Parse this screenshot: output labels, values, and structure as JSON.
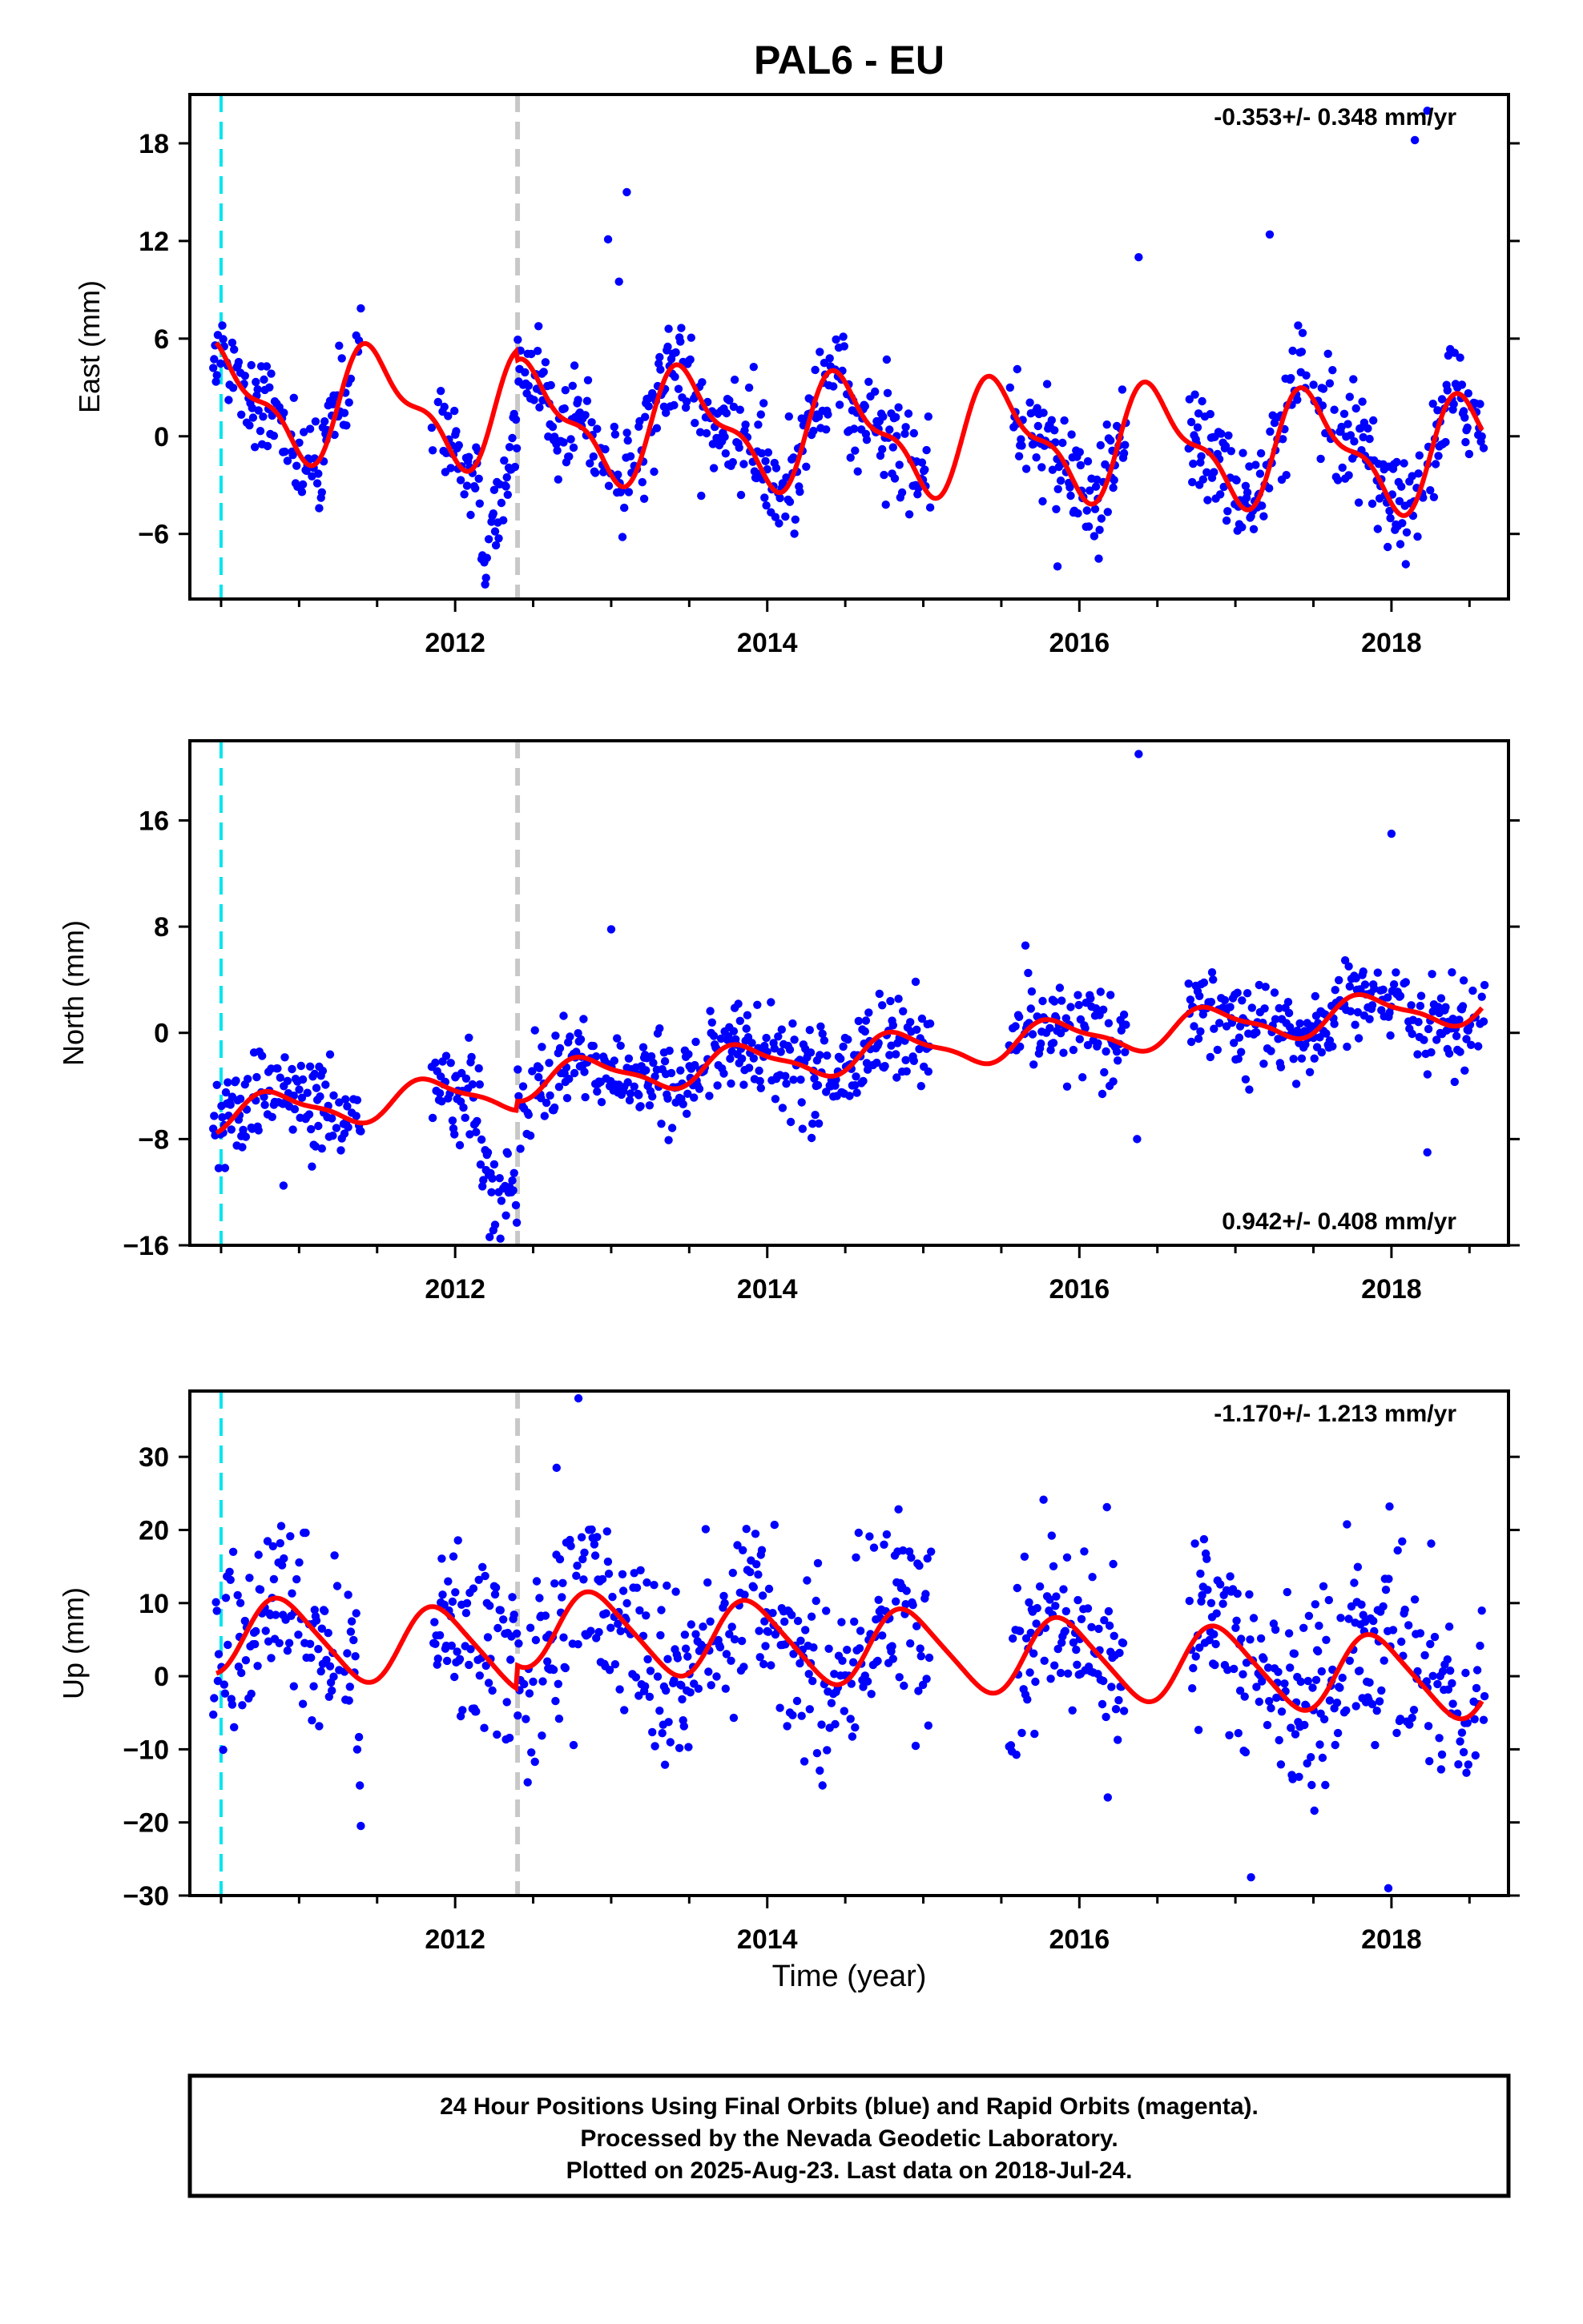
{
  "chart_data": {
    "type": "scatter",
    "title": "PAL6 - EU",
    "xlabel": "Time (year)",
    "xlim": [
      2010.3,
      2018.75
    ],
    "x_ticks": [
      "2012",
      "2014",
      "2016",
      "2018"
    ],
    "colors": {
      "final_orbits": "#0000ff",
      "rapid_orbits": "#ff00ff",
      "model": "#ff0000",
      "antenna_change": "#00e5ee",
      "equipment_change": "#c8c8c8"
    },
    "events": [
      {
        "type": "antenna_change",
        "year": 2010.5,
        "color": "#00e5ee"
      },
      {
        "type": "equipment_change",
        "year": 2012.4,
        "color": "#c8c8c8"
      }
    ],
    "data_coverage": [
      [
        2010.45,
        2011.4
      ],
      [
        2011.85,
        2012.55
      ],
      [
        2012.55,
        2015.05
      ],
      [
        2015.55,
        2016.3
      ],
      [
        2016.7,
        2018.6
      ]
    ],
    "panels": [
      {
        "ylabel": "East (mm)",
        "ylim": [
          -10,
          21
        ],
        "y_ticks": [
          -6,
          0,
          6,
          12,
          18
        ],
        "rate_label": "-0.353+/- 0.348 mm/yr",
        "rate_position": "top-right",
        "model": {
          "trend": -0.353,
          "offset_before": 0.8,
          "offset_after": 0.2,
          "annual_amp": 3.1,
          "annual_phase_year": 0.25,
          "semi_annual_amp": 1.3,
          "noise_sd": 1.6,
          "step_at": 2012.4,
          "step": -6.5
        },
        "outliers": [
          [
            2012.98,
            12.1
          ],
          [
            2013.1,
            15.0
          ],
          [
            2016.38,
            11.0
          ],
          [
            2017.22,
            12.4
          ],
          [
            2018.23,
            20.0
          ],
          [
            2018.15,
            18.2
          ],
          [
            2015.86,
            -8.0
          ],
          [
            2013.05,
            9.5
          ]
        ]
      },
      {
        "ylabel": "North (mm)",
        "ylim": [
          -16,
          22
        ],
        "y_ticks": [
          -16,
          -8,
          0,
          8,
          16
        ],
        "rate_label": "0.942+/- 0.408 mm/yr",
        "rate_position": "bottom-right",
        "model": {
          "trend": 0.942,
          "offset_before": -2.4,
          "offset_after": -1.7,
          "annual_amp": 1.3,
          "annual_phase_year": 0.6,
          "semi_annual_amp": 0.4,
          "noise_sd": 1.7,
          "step_at": 2012.4,
          "step": -6.0
        },
        "outliers": [
          [
            2016.38,
            21.0
          ],
          [
            2018.0,
            15.0
          ],
          [
            2012.29,
            -15.5
          ],
          [
            2018.23,
            -9.0
          ],
          [
            2016.37,
            -8.0
          ],
          [
            2010.9,
            -11.5
          ],
          [
            2013.0,
            7.8
          ]
        ]
      },
      {
        "ylabel": "Up (mm)",
        "ylim": [
          -30,
          39
        ],
        "y_ticks": [
          -30,
          -20,
          -10,
          0,
          10,
          20,
          30
        ],
        "rate_label": "-1.170+/- 1.213 mm/yr",
        "rate_position": "top-right",
        "model": {
          "trend": -1.17,
          "offset_before": 1.0,
          "offset_after": 4.2,
          "annual_amp": 5.2,
          "annual_phase_year": 0.65,
          "semi_annual_amp": 0.8,
          "noise_sd": 6.5,
          "step_at": 2012.4,
          "step": 3.0
        },
        "outliers": [
          [
            2012.79,
            38.0
          ],
          [
            2017.98,
            -29.0
          ],
          [
            2017.1,
            -27.5
          ],
          [
            2012.65,
            28.5
          ]
        ]
      }
    ]
  },
  "footer": {
    "lines": [
      "24 Hour Positions Using Final Orbits (blue) and Rapid Orbits (magenta).",
      "Processed by the Nevada Geodetic Laboratory.",
      "Plotted on 2025-Aug-23. Last data on 2018-Jul-24."
    ]
  }
}
